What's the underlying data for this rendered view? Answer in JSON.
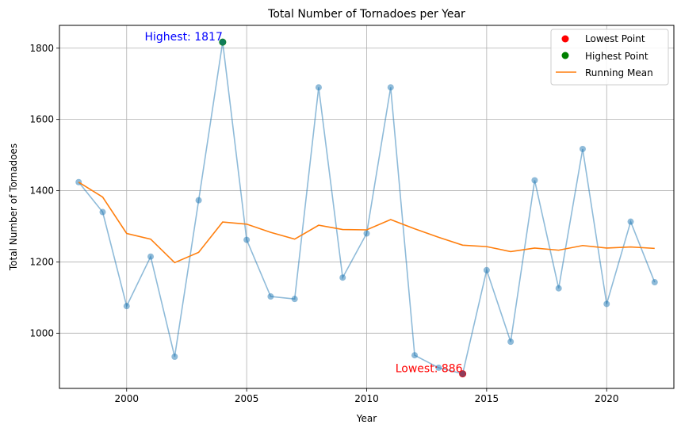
{
  "chart_data": {
    "type": "line",
    "title": "Total Number of Tornadoes per Year",
    "xlabel": "Year",
    "ylabel": "Total Number of Tornadoes",
    "xlim": [
      1997.2,
      2022.8
    ],
    "ylim": [
      845,
      1864
    ],
    "x_ticks": [
      2000,
      2005,
      2010,
      2015,
      2020
    ],
    "y_ticks": [
      1000,
      1200,
      1400,
      1600,
      1800
    ],
    "grid": true,
    "legend_position": "top-right",
    "legend": [
      {
        "label": "Lowest Point",
        "type": "marker",
        "color": "#ff0000"
      },
      {
        "label": "Highest Point",
        "type": "marker",
        "color": "#008000"
      },
      {
        "label": "Running Mean",
        "type": "line",
        "color": "#ff7f0e"
      }
    ],
    "series": [
      {
        "name": "",
        "color": "#1f77b4",
        "x": [
          1998,
          1999,
          2000,
          2001,
          2002,
          2003,
          2004,
          2005,
          2006,
          2007,
          2008,
          2009,
          2010,
          2011,
          2012,
          2013,
          2014,
          2015,
          2016,
          2017,
          2018,
          2019,
          2020,
          2021,
          2022
        ],
        "y": [
          1424,
          1340,
          1076,
          1215,
          934,
          1373,
          1817,
          1262,
          1103,
          1096,
          1690,
          1156,
          1280,
          1690,
          938,
          903,
          886,
          1177,
          976,
          1429,
          1126,
          1517,
          1082,
          1313,
          1143
        ]
      },
      {
        "name": "Running Mean",
        "color": "#ff7f0e",
        "x": [
          1998,
          1999,
          2000,
          2001,
          2002,
          2003,
          2004,
          2005,
          2006,
          2007,
          2008,
          2009,
          2010,
          2011,
          2012,
          2013,
          2014,
          2015,
          2016,
          2017,
          2018,
          2019,
          2020,
          2021,
          2022
        ],
        "y": [
          1424,
          1382,
          1280,
          1264,
          1198,
          1227,
          1312,
          1306,
          1283,
          1264,
          1303,
          1291,
          1290,
          1319,
          1293,
          1269,
          1247,
          1243,
          1229,
          1239,
          1233,
          1246,
          1239,
          1242,
          1238
        ]
      }
    ],
    "highest": {
      "x": 2004,
      "y": 1817,
      "label": "Highest: 1817",
      "color": "#008000",
      "label_color": "#0000ff"
    },
    "lowest": {
      "x": 2014,
      "y": 886,
      "label": "Lowest: 886",
      "color": "#ff0000",
      "label_color": "#ff0000"
    }
  }
}
